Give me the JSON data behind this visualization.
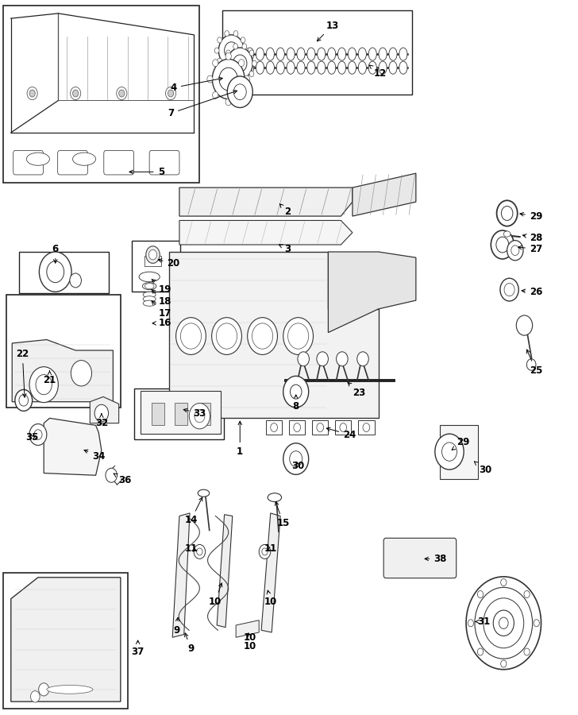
{
  "bg_color": "#ffffff",
  "line_color": "#000000",
  "fig_width": 7.28,
  "fig_height": 9.0,
  "dpi": 100
}
